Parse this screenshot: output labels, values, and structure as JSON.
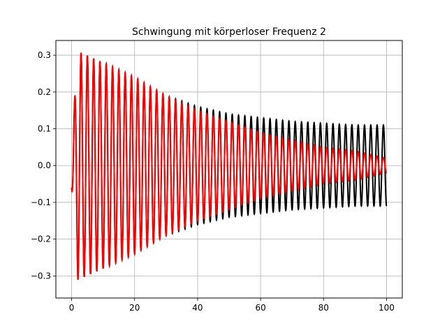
{
  "chart_data": {
    "type": "line",
    "title": "Schwingung mit körperloser Frequenz 2",
    "xlabel": "",
    "ylabel": "",
    "xlim": [
      -5,
      105
    ],
    "ylim": [
      -0.36,
      0.34
    ],
    "x_ticks": [
      0,
      20,
      40,
      60,
      80,
      100
    ],
    "y_ticks": [
      -0.3,
      -0.2,
      -0.1,
      0.0,
      0.1,
      0.2,
      0.3
    ],
    "x_tick_labels": [
      "0",
      "20",
      "40",
      "60",
      "80",
      "100"
    ],
    "y_tick_labels": [
      "−0.3",
      "−0.2",
      "−0.1",
      "0.0",
      "0.1",
      "0.2",
      "0.3"
    ],
    "grid": true,
    "legend": "none",
    "series": [
      {
        "color": "#000000",
        "oscillation_period": 2.0,
        "t_range": [
          0,
          100
        ],
        "envelope": {
          "t": [
            0,
            2,
            10,
            20,
            30,
            40,
            50,
            60,
            70,
            80,
            90,
            100
          ],
          "amplitude": [
            0.06,
            0.31,
            0.28,
            0.24,
            0.19,
            0.16,
            0.14,
            0.13,
            0.12,
            0.115,
            0.11,
            0.11
          ]
        }
      },
      {
        "color": "#ff0000",
        "oscillation_period": 2.0,
        "t_range": [
          0,
          100
        ],
        "envelope": {
          "t": [
            0,
            2,
            10,
            20,
            30,
            40,
            50,
            60,
            70,
            80,
            90,
            95,
            100
          ],
          "amplitude": [
            0.06,
            0.31,
            0.28,
            0.24,
            0.19,
            0.15,
            0.12,
            0.09,
            0.07,
            0.05,
            0.04,
            0.03,
            0.02
          ]
        }
      }
    ]
  }
}
